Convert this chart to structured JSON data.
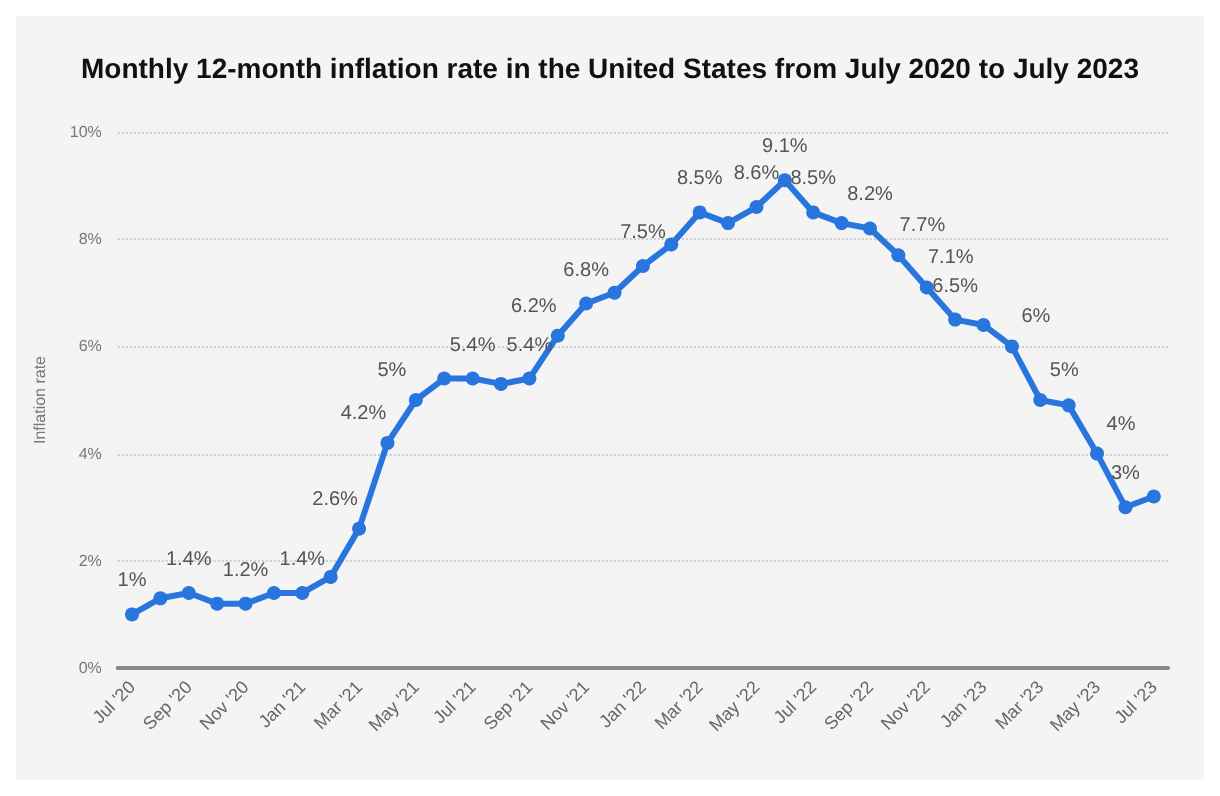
{
  "chart_data": {
    "type": "line",
    "title": "Monthly 12-month inflation rate in the United States from July 2020 to July 2023",
    "ylabel": "Inflation rate",
    "categories": [
      "Jul '20",
      null,
      "Sep '20",
      null,
      "Nov '20",
      null,
      "Jan '21",
      null,
      "Mar '21",
      null,
      "May '21",
      null,
      "Jul '21",
      null,
      "Sep '21",
      null,
      "Nov '21",
      null,
      "Jan '22",
      null,
      "Mar '22",
      null,
      "May '22",
      null,
      "Jul '22",
      null,
      "Sep '22",
      null,
      "Nov '22",
      null,
      "Jan '23",
      null,
      "Mar '23",
      null,
      "May '23",
      null,
      "Jul '23"
    ],
    "series": [
      {
        "color": "#2876dd",
        "values": [
          1.0,
          1.3,
          1.4,
          1.2,
          1.2,
          1.4,
          1.4,
          1.7,
          2.6,
          4.2,
          5.0,
          5.4,
          5.4,
          5.3,
          5.4,
          6.2,
          6.8,
          7.0,
          7.5,
          7.9,
          8.5,
          8.3,
          8.6,
          9.1,
          8.5,
          8.3,
          8.2,
          7.7,
          7.1,
          6.5,
          6.4,
          6.0,
          5.0,
          4.9,
          4.0,
          3.0,
          3.2
        ],
        "value_labels": [
          "1%",
          null,
          "1.4%",
          null,
          "1.2%",
          null,
          "1.4%",
          null,
          "2.6%",
          "4.2%",
          "5%",
          null,
          "5.4%",
          null,
          "5.4%",
          "6.2%",
          "6.8%",
          null,
          "7.5%",
          null,
          "8.5%",
          null,
          "8.6%",
          "9.1%",
          "8.5%",
          null,
          "8.2%",
          "7.7%",
          "7.1%",
          "6.5%",
          null,
          "6%",
          "5%",
          null,
          "4%",
          "3%",
          null
        ]
      }
    ],
    "ylim": [
      0,
      10
    ],
    "yticks": [
      {
        "value": 0,
        "label": "0%"
      },
      {
        "value": 2,
        "label": "2%"
      },
      {
        "value": 4,
        "label": "4%"
      },
      {
        "value": 6,
        "label": "6%"
      },
      {
        "value": 8,
        "label": "8%"
      },
      {
        "value": 10,
        "label": "10%"
      }
    ],
    "grid": "y",
    "marker": "circle",
    "line_style": "solid"
  }
}
